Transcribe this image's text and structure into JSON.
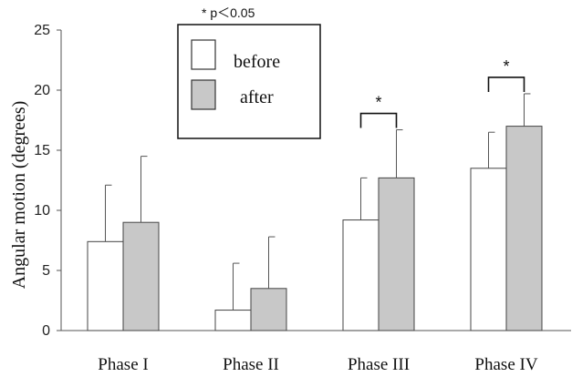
{
  "chart_data": {
    "type": "bar",
    "ylabel": "Angular motion (degrees)",
    "ylim": [
      0,
      25
    ],
    "yticks": [
      "0",
      "5",
      "10",
      "15",
      "20",
      "25"
    ],
    "categories": [
      "Phase I",
      "Phase II",
      "Phase III",
      "Phase IV"
    ],
    "series": [
      {
        "name": "before",
        "values": [
          7.4,
          1.7,
          9.2,
          13.5
        ],
        "error": [
          4.7,
          3.9,
          3.5,
          3.0
        ],
        "color": "#ffffff"
      },
      {
        "name": "after",
        "values": [
          9.0,
          3.5,
          12.7,
          17.0
        ],
        "error": [
          5.5,
          4.3,
          4.0,
          2.7
        ],
        "color": "#c8c8c8"
      }
    ],
    "significance": {
      "categories": [
        "Phase III",
        "Phase IV"
      ],
      "marker": "*"
    },
    "note": "* p＜0.05",
    "legend_position": "top-center",
    "grid": false
  }
}
